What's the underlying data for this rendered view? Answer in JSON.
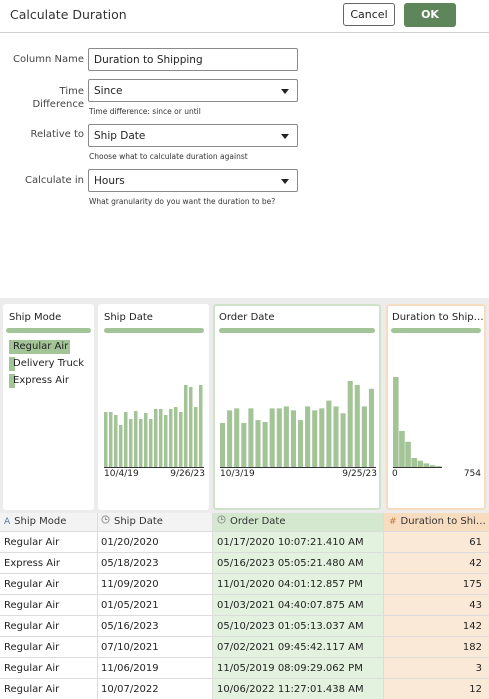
{
  "dialog": {
    "title": "Calculate Duration",
    "cancel_label": "Cancel",
    "ok_label": "OK"
  },
  "form": {
    "column_name_label": "Column Name",
    "column_name_value": "Duration to Shipping",
    "time_difference_label_1": "Time",
    "time_difference_label_2": "Difference",
    "time_difference_value": "Since",
    "time_difference_help": "Time difference: since or until",
    "relative_to_label": "Relative to",
    "relative_to_value": "Ship Date",
    "relative_to_help": "Choose what to calculate duration against",
    "calculate_in_label": "Calculate in",
    "calculate_in_value": "Hours",
    "calculate_in_help": "What granularity do you want the duration to be?"
  },
  "preview": {
    "ship_mode": {
      "title": "Ship Mode",
      "items": [
        {
          "label": "Regular Air",
          "share": 1.0
        },
        {
          "label": "Delivery Truck",
          "share": 0.1
        },
        {
          "label": "Express Air",
          "share": 0.1
        }
      ]
    },
    "ship_date": {
      "title": "Ship Date",
      "tick_start": "10/4/19",
      "tick_end": "9/26/23",
      "bars": [
        55,
        55,
        52,
        42,
        55,
        48,
        56,
        48,
        54,
        48,
        58,
        58,
        52,
        58,
        60,
        55,
        82,
        80,
        60,
        82
      ]
    },
    "order_date": {
      "title": "Order Date",
      "tick_start": "10/3/19",
      "tick_end": "9/25/23",
      "bars": [
        45,
        58,
        60,
        45,
        60,
        48,
        46,
        60,
        60,
        62,
        58,
        48,
        62,
        58,
        60,
        68,
        62,
        55,
        88,
        84,
        62,
        80
      ]
    },
    "duration": {
      "title": "Duration to Ship…",
      "tick_start": "0",
      "tick_end": "754",
      "bars": [
        100,
        40,
        28,
        10,
        7,
        4,
        2,
        1
      ]
    }
  },
  "table": {
    "headers": {
      "ship_mode": "Ship Mode",
      "ship_date": "Ship Date",
      "order_date": "Order Date",
      "duration": "Duration to Shi…"
    },
    "header_icons": {
      "ship_mode": "A",
      "ship_date": "clock-icon",
      "order_date": "clock-icon",
      "duration": "#"
    },
    "rows": [
      {
        "ship_mode": "Regular Air",
        "ship_date": "01/20/2020",
        "order_date": "01/17/2020 10:07:21.410 AM",
        "duration": "61"
      },
      {
        "ship_mode": "Express Air",
        "ship_date": "05/18/2023",
        "order_date": "05/16/2023 05:05:21.480 AM",
        "duration": "42"
      },
      {
        "ship_mode": "Regular Air",
        "ship_date": "11/09/2020",
        "order_date": "11/01/2020 04:01:12.857 PM",
        "duration": "175"
      },
      {
        "ship_mode": "Regular Air",
        "ship_date": "01/05/2021",
        "order_date": "01/03/2021 04:40:07.875 AM",
        "duration": "43"
      },
      {
        "ship_mode": "Regular Air",
        "ship_date": "05/16/2023",
        "order_date": "05/10/2023 01:05:13.037 AM",
        "duration": "142"
      },
      {
        "ship_mode": "Regular Air",
        "ship_date": "07/10/2021",
        "order_date": "07/02/2021 09:45:42.117 AM",
        "duration": "182"
      },
      {
        "ship_mode": "Regular Air",
        "ship_date": "11/06/2019",
        "order_date": "11/05/2019 08:09:29.062 PM",
        "duration": "3"
      },
      {
        "ship_mode": "Regular Air",
        "ship_date": "10/07/2022",
        "order_date": "10/06/2022 11:27:01.438 AM",
        "duration": "12"
      }
    ]
  },
  "colors": {
    "accent_green": "#5f855a",
    "bar_green": "#a3c497",
    "order_col_bg": "#e3f1df",
    "duration_col_bg": "#fbe9d7"
  }
}
